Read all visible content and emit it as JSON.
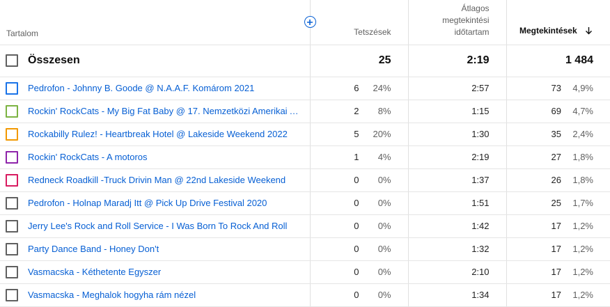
{
  "header": {
    "content": "Tartalom",
    "likes": "Tetszések",
    "avg_line1": "Átlagos",
    "avg_line2": "megtekintési",
    "avg_line3": "időtartam",
    "views": "Megtekintések"
  },
  "icons": {
    "add": "add-circle-icon",
    "sort": "arrow-down-icon"
  },
  "colors": {
    "link": "#065fd4"
  },
  "total": {
    "label": "Összesen",
    "likes": "25",
    "avg": "2:19",
    "views": "1 484"
  },
  "rows": [
    {
      "title": "Pedrofon - Johnny B. Goode @ N.A.A.F. Komárom 2021",
      "color": "#1a73e8",
      "likes": "6",
      "likes_pct": "24%",
      "avg": "2:57",
      "views": "73",
      "views_pct": "4,9%"
    },
    {
      "title": "Rockin' RockCats - My Big Fat Baby @ 17. Nemzetközi Amerikai Aut...",
      "color": "#7cb342",
      "likes": "2",
      "likes_pct": "8%",
      "avg": "1:15",
      "views": "69",
      "views_pct": "4,7%"
    },
    {
      "title": "Rockabilly Rulez! - Heartbreak Hotel @ Lakeside Weekend 2022",
      "color": "#f29900",
      "likes": "5",
      "likes_pct": "20%",
      "avg": "1:30",
      "views": "35",
      "views_pct": "2,4%"
    },
    {
      "title": "Rockin' RockCats - A motoros",
      "color": "#8e24aa",
      "likes": "1",
      "likes_pct": "4%",
      "avg": "2:19",
      "views": "27",
      "views_pct": "1,8%"
    },
    {
      "title": "Redneck Roadkill -Truck Drivin Man @ 22nd Lakeside Weekend",
      "color": "#d81b60",
      "likes": "0",
      "likes_pct": "0%",
      "avg": "1:37",
      "views": "26",
      "views_pct": "1,8%"
    },
    {
      "title": "Pedrofon - Holnap Maradj Itt @ Pick Up Drive Festival 2020",
      "color": "#606060",
      "likes": "0",
      "likes_pct": "0%",
      "avg": "1:51",
      "views": "25",
      "views_pct": "1,7%"
    },
    {
      "title": "Jerry Lee's Rock and Roll Service - I Was Born To Rock And Roll",
      "color": "#606060",
      "likes": "0",
      "likes_pct": "0%",
      "avg": "1:42",
      "views": "17",
      "views_pct": "1,2%"
    },
    {
      "title": "Party Dance Band - Honey Don't",
      "color": "#606060",
      "likes": "0",
      "likes_pct": "0%",
      "avg": "1:32",
      "views": "17",
      "views_pct": "1,2%"
    },
    {
      "title": "Vasmacska - Kéthetente Egyszer",
      "color": "#606060",
      "likes": "0",
      "likes_pct": "0%",
      "avg": "2:10",
      "views": "17",
      "views_pct": "1,2%"
    },
    {
      "title": "Vasmacska - Meghalok hogyha rám nézel",
      "color": "#606060",
      "likes": "0",
      "likes_pct": "0%",
      "avg": "1:34",
      "views": "17",
      "views_pct": "1,2%"
    }
  ]
}
